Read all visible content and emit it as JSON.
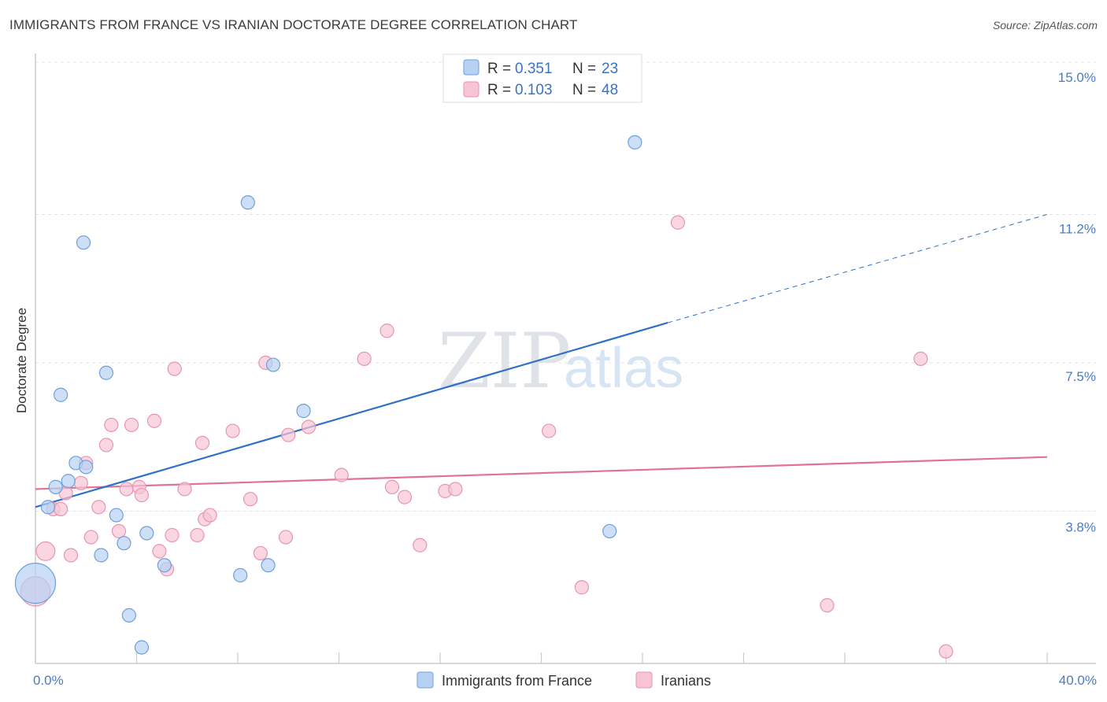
{
  "title": "IMMIGRANTS FROM FRANCE VS IRANIAN DOCTORATE DEGREE CORRELATION CHART",
  "source": "Source: ZipAtlas.com",
  "watermark": {
    "zip": "ZIP",
    "atlas": "atlas"
  },
  "colors": {
    "blue_fill": "#b7d1f3",
    "blue_stroke": "#6f9fd9",
    "blue_line": "#2f70c9",
    "pink_fill": "#f7c4d4",
    "pink_stroke": "#e696b0",
    "pink_line": "#e0729a",
    "grid": "#e3e3e3",
    "axis": "#cccccc"
  },
  "legend": {
    "rows": [
      {
        "r_label": "R =",
        "r_value": "0.351",
        "n_label": "N =",
        "n_value": "23"
      },
      {
        "r_label": "R =",
        "r_value": "0.103",
        "n_label": "N =",
        "n_value": "48"
      }
    ]
  },
  "chart_data": {
    "type": "scatter",
    "ylabel": "Doctorate Degree",
    "xlim": [
      0,
      40
    ],
    "ylim": [
      0,
      15.5
    ],
    "x_tick_labels": [
      {
        "value": 0,
        "label": "0.0%"
      },
      {
        "value": 40,
        "label": "40.0%"
      }
    ],
    "y_ticks": [
      {
        "value": 3.8,
        "label": "3.8%"
      },
      {
        "value": 7.5,
        "label": "7.5%"
      },
      {
        "value": 11.2,
        "label": "11.2%"
      },
      {
        "value": 15.0,
        "label": "15.0%"
      }
    ],
    "x_minor_ticks": [
      0,
      4,
      8,
      12,
      16,
      20,
      24,
      28,
      32,
      36,
      40
    ],
    "series": [
      {
        "name": "Immigrants from France",
        "color": "blue",
        "points": [
          [
            0.0,
            2.0,
            3.0
          ],
          [
            0.5,
            3.9,
            1
          ],
          [
            0.8,
            4.4,
            1
          ],
          [
            1.0,
            6.7,
            1
          ],
          [
            1.3,
            4.55,
            1
          ],
          [
            1.6,
            5.0,
            1
          ],
          [
            2.0,
            4.9,
            1
          ],
          [
            1.9,
            10.5,
            1
          ],
          [
            2.6,
            2.7,
            1
          ],
          [
            2.8,
            7.25,
            1
          ],
          [
            3.2,
            3.7,
            1
          ],
          [
            3.5,
            3.0,
            1
          ],
          [
            3.7,
            1.2,
            1
          ],
          [
            4.2,
            0.4,
            1
          ],
          [
            4.4,
            3.25,
            1
          ],
          [
            5.1,
            2.45,
            1
          ],
          [
            8.1,
            2.2,
            1
          ],
          [
            8.4,
            11.5,
            1
          ],
          [
            9.2,
            2.45,
            1
          ],
          [
            9.4,
            7.45,
            1
          ],
          [
            10.6,
            6.3,
            1
          ],
          [
            22.7,
            3.3,
            1
          ],
          [
            23.7,
            13.0,
            1
          ]
        ],
        "trend": {
          "x0": 0,
          "y0": 3.9,
          "x1": 25,
          "y1": 8.5,
          "dash_x1": 40,
          "dash_y1": 11.2
        }
      },
      {
        "name": "Iranians",
        "color": "pink",
        "points": [
          [
            0.0,
            1.8,
            2.2
          ],
          [
            0.4,
            2.8,
            1.4
          ],
          [
            0.7,
            3.85,
            1
          ],
          [
            1.0,
            3.85,
            1
          ],
          [
            1.2,
            4.25,
            1
          ],
          [
            1.4,
            2.7,
            1
          ],
          [
            1.8,
            4.5,
            1
          ],
          [
            2.0,
            5.0,
            1
          ],
          [
            2.2,
            3.15,
            1
          ],
          [
            2.5,
            3.9,
            1
          ],
          [
            2.8,
            5.45,
            1
          ],
          [
            3.0,
            5.95,
            1
          ],
          [
            3.3,
            3.3,
            1
          ],
          [
            3.6,
            4.35,
            1
          ],
          [
            3.8,
            5.95,
            1
          ],
          [
            4.1,
            4.4,
            1
          ],
          [
            4.2,
            4.2,
            1
          ],
          [
            4.7,
            6.05,
            1
          ],
          [
            4.9,
            2.8,
            1
          ],
          [
            5.2,
            2.35,
            1
          ],
          [
            5.4,
            3.2,
            1
          ],
          [
            5.5,
            7.35,
            1
          ],
          [
            5.9,
            4.35,
            1
          ],
          [
            6.4,
            3.2,
            1
          ],
          [
            6.6,
            5.5,
            1
          ],
          [
            6.7,
            3.6,
            1
          ],
          [
            6.9,
            3.7,
            1
          ],
          [
            7.8,
            5.8,
            1
          ],
          [
            8.5,
            4.1,
            1
          ],
          [
            8.9,
            2.75,
            1
          ],
          [
            9.1,
            7.5,
            1
          ],
          [
            9.9,
            3.15,
            1
          ],
          [
            10.0,
            5.7,
            1
          ],
          [
            10.8,
            5.9,
            1
          ],
          [
            12.1,
            4.7,
            1
          ],
          [
            13.0,
            7.6,
            1
          ],
          [
            13.9,
            8.3,
            1
          ],
          [
            14.1,
            4.4,
            1
          ],
          [
            14.6,
            4.15,
            1
          ],
          [
            15.2,
            2.95,
            1
          ],
          [
            16.2,
            4.3,
            1
          ],
          [
            16.6,
            4.35,
            1
          ],
          [
            20.3,
            5.8,
            1
          ],
          [
            21.6,
            1.9,
            1
          ],
          [
            25.4,
            11.0,
            1
          ],
          [
            31.3,
            1.45,
            1
          ],
          [
            35.0,
            7.6,
            1
          ],
          [
            36.0,
            0.3,
            1
          ]
        ],
        "trend": {
          "x0": 0,
          "y0": 4.35,
          "x1": 40,
          "y1": 5.15
        }
      }
    ]
  }
}
